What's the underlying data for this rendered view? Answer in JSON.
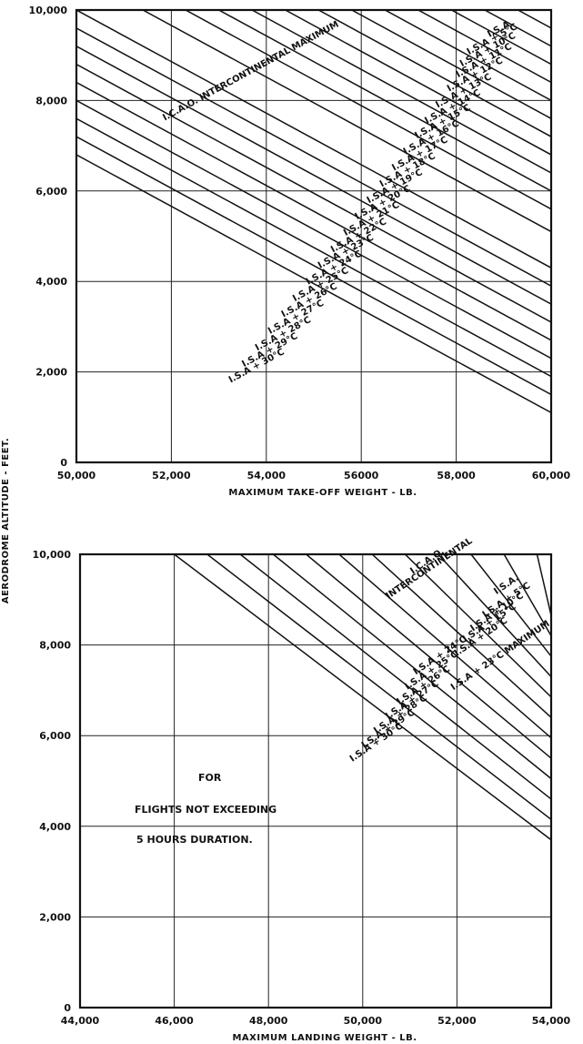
{
  "y_axis_label": "AERODROME   ALTITUDE  -  FEET.",
  "chart_data": [
    {
      "type": "line",
      "xlabel": "MAXIMUM   TAKE-OFF  WEIGHT - LB.",
      "ylabel": "AERODROME ALTITUDE - FEET.",
      "xlim": [
        50000,
        60000
      ],
      "ylim": [
        0,
        10000
      ],
      "grid": true,
      "x_ticks": [
        "50,000",
        "52,000",
        "54,000",
        "56000",
        "58,000",
        "60,000"
      ],
      "y_ticks": [
        "0",
        "2,000",
        "4,000",
        "6,000",
        "8,000",
        "10,000"
      ],
      "x_tick_values": [
        50000,
        52000,
        54000,
        56000,
        58000,
        60000
      ],
      "y_tick_values": [
        0,
        2000,
        4000,
        6000,
        8000,
        10000
      ],
      "diagonal_lines": [
        [
          [
            50000,
            10000
          ],
          [
            60000,
            4300
          ]
        ],
        [
          [
            50000,
            9600
          ],
          [
            60000,
            3900
          ]
        ],
        [
          [
            50000,
            9200
          ],
          [
            60000,
            3500
          ]
        ],
        [
          [
            50000,
            8800
          ],
          [
            60000,
            3100
          ]
        ],
        [
          [
            50000,
            8400
          ],
          [
            60000,
            2700
          ]
        ],
        [
          [
            50000,
            8000
          ],
          [
            60000,
            2300
          ]
        ],
        [
          [
            50000,
            7600
          ],
          [
            60000,
            1900
          ]
        ],
        [
          [
            50000,
            7200
          ],
          [
            60000,
            1500
          ]
        ],
        [
          [
            50000,
            6800
          ],
          [
            60000,
            1100
          ]
        ],
        [
          [
            51400,
            10000
          ],
          [
            60000,
            5100
          ]
        ],
        [
          [
            52300,
            10000
          ],
          [
            60000,
            5600
          ]
        ],
        [
          [
            53000,
            10000
          ],
          [
            60000,
            6000
          ]
        ],
        [
          [
            53700,
            10000
          ],
          [
            60000,
            6400
          ]
        ],
        [
          [
            54400,
            10000
          ],
          [
            60000,
            6800
          ]
        ],
        [
          [
            55100,
            10000
          ],
          [
            60000,
            7200
          ]
        ],
        [
          [
            55800,
            10000
          ],
          [
            60000,
            7600
          ]
        ],
        [
          [
            56500,
            10000
          ],
          [
            60000,
            8000
          ]
        ],
        [
          [
            57200,
            10000
          ],
          [
            60000,
            8400
          ]
        ],
        [
          [
            57900,
            10000
          ],
          [
            60000,
            8800
          ]
        ],
        [
          [
            58600,
            10000
          ],
          [
            60000,
            9200
          ]
        ],
        [
          [
            59300,
            10000
          ],
          [
            60000,
            9600
          ]
        ]
      ],
      "annotations": [
        {
          "text": "I.C.A.O. INTERCONTINENTAL  MAXIMUM",
          "x": 53700,
          "y": 8600
        },
        {
          "text": "I.S.A",
          "x": 58920,
          "y": 9520
        },
        {
          "text": "I.S.A + 5°C",
          "x": 58780,
          "y": 9300
        },
        {
          "text": "I.S.A + 10°C",
          "x": 58690,
          "y": 9070
        },
        {
          "text": "I.S.A + 11°C",
          "x": 58610,
          "y": 8830
        },
        {
          "text": "I.S.A + 12°C",
          "x": 58420,
          "y": 8520
        },
        {
          "text": "I.S.A + 13°C",
          "x": 58180,
          "y": 8160
        },
        {
          "text": "I.S.A + 14°C",
          "x": 57950,
          "y": 7810
        },
        {
          "text": "I.S.A + 15°C",
          "x": 57740,
          "y": 7480
        },
        {
          "text": "I.S.A + 16°C",
          "x": 57500,
          "y": 7130
        },
        {
          "text": "I.S.A + 17°C",
          "x": 57260,
          "y": 6770
        },
        {
          "text": "I.S.A + 18°C",
          "x": 57000,
          "y": 6410
        },
        {
          "text": "I.S.A + 19°C",
          "x": 56730,
          "y": 6050
        },
        {
          "text": "I.S.A + 20°C",
          "x": 56480,
          "y": 5690
        },
        {
          "text": "I.S.A + 21°C",
          "x": 56240,
          "y": 5330
        },
        {
          "text": "I.S.A + 22°C",
          "x": 55970,
          "y": 4960
        },
        {
          "text": "I.S.A + 23°C",
          "x": 55700,
          "y": 4610
        },
        {
          "text": "I.S.A + 24°C",
          "x": 55450,
          "y": 4250
        },
        {
          "text": "I.S.A + 25°C",
          "x": 55170,
          "y": 3880
        },
        {
          "text": "I.S.A + 26°C",
          "x": 54930,
          "y": 3530
        },
        {
          "text": "I.S.A + 27°C",
          "x": 54650,
          "y": 3160
        },
        {
          "text": "I.S.A + 28°C",
          "x": 54380,
          "y": 2790
        },
        {
          "text": "I.S.A + 29°C",
          "x": 54100,
          "y": 2430
        },
        {
          "text": "I.S.A + 30°C",
          "x": 53820,
          "y": 2080
        }
      ]
    },
    {
      "type": "line",
      "xlabel": "MAXIMUM   LANDING   WEIGHT - LB.",
      "ylabel": "AERODROME ALTITUDE - FEET.",
      "xlim": [
        44000,
        54000
      ],
      "ylim": [
        0,
        10000
      ],
      "grid": true,
      "x_ticks": [
        "44,000",
        "46,000",
        "48,000",
        "50,000",
        "52,000",
        "54,000"
      ],
      "y_ticks": [
        "0",
        "2,000",
        "4,000",
        "6,000",
        "8,000",
        "10,000"
      ],
      "x_tick_values": [
        44000,
        46000,
        48000,
        50000,
        52000,
        54000
      ],
      "y_tick_values": [
        0,
        2000,
        4000,
        6000,
        8000,
        10000
      ],
      "diagonal_lines": [
        [
          [
            46000,
            10000
          ],
          [
            54000,
            3700
          ]
        ],
        [
          [
            46700,
            10000
          ],
          [
            54000,
            4150
          ]
        ],
        [
          [
            47400,
            10000
          ],
          [
            54000,
            4600
          ]
        ],
        [
          [
            48100,
            10000
          ],
          [
            54000,
            5050
          ]
        ],
        [
          [
            48800,
            10000
          ],
          [
            54000,
            5500
          ]
        ],
        [
          [
            49500,
            10000
          ],
          [
            54000,
            5950
          ]
        ],
        [
          [
            50200,
            10000
          ],
          [
            54000,
            6400
          ]
        ],
        [
          [
            50900,
            10000
          ],
          [
            54000,
            6850
          ]
        ],
        [
          [
            51600,
            10000
          ],
          [
            54000,
            7300
          ]
        ],
        [
          [
            52300,
            10000
          ],
          [
            54000,
            7750
          ]
        ],
        [
          [
            53000,
            10000
          ],
          [
            54000,
            8200
          ]
        ],
        [
          [
            53700,
            10000
          ],
          [
            54000,
            8650
          ]
        ]
      ],
      "annotations": [
        {
          "text": "I.C.A.O.",
          "x": 51400,
          "y": 9800
        },
        {
          "text": "INTERCONTINENTAL",
          "x": 51440,
          "y": 9640
        },
        {
          "text": "I.S.A.",
          "x": 53080,
          "y": 9280
        },
        {
          "text": "I.S.A + 5°C",
          "x": 53080,
          "y": 8940
        },
        {
          "text": "I.S.A + 10°C",
          "x": 52880,
          "y": 8680
        },
        {
          "text": "I.S.A + 15°C",
          "x": 52720,
          "y": 8440
        },
        {
          "text": "I.S.A + 20°C",
          "x": 52540,
          "y": 8130
        },
        {
          "text": "I.S.A + 23°C  MAXIMUM",
          "x": 52950,
          "y": 7720
        },
        {
          "text": "I.S.A + 24°C",
          "x": 51670,
          "y": 7720
        },
        {
          "text": "I.S.A + 25°C",
          "x": 51490,
          "y": 7390
        },
        {
          "text": "I.S.A + 26°C",
          "x": 51320,
          "y": 7060
        },
        {
          "text": "I.S.A + 27°C",
          "x": 51080,
          "y": 6740
        },
        {
          "text": "I.S.A + 28°C",
          "x": 50830,
          "y": 6420
        },
        {
          "text": "I.S.A + 29°C",
          "x": 50570,
          "y": 6100
        },
        {
          "text": "I.S.A + 30°C",
          "x": 50320,
          "y": 5800
        }
      ],
      "note": [
        "FOR",
        "FLIGHTS   NOT   EXCEEDING",
        "5  HOURS   DURATION."
      ]
    }
  ]
}
